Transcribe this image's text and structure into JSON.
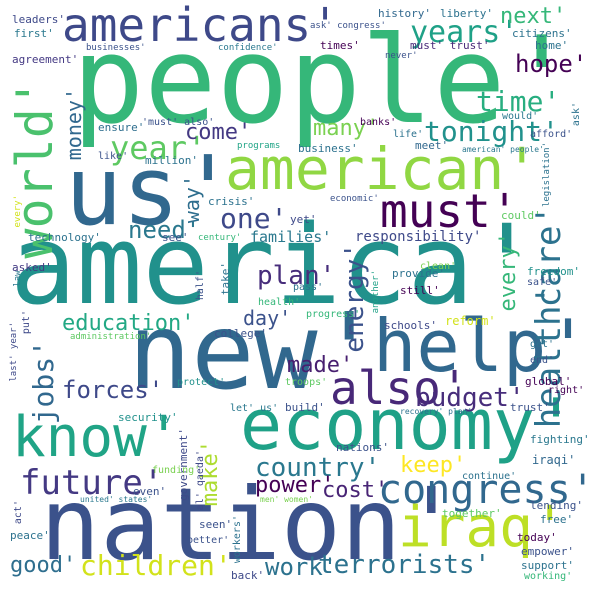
{
  "words": [
    {
      "text": "people'",
      "color": "#35b779"
    },
    {
      "text": "america'",
      "color": "#21918c"
    },
    {
      "text": "us'",
      "color": "#31688e"
    },
    {
      "text": "new'",
      "color": "#31688e"
    },
    {
      "text": "nation'",
      "color": "#3b528b"
    },
    {
      "text": "economy'",
      "color": "#1fa187"
    },
    {
      "text": "american'",
      "color": "#90d743"
    },
    {
      "text": "americans'",
      "color": "#3e4989"
    },
    {
      "text": "help'",
      "color": "#31688e"
    },
    {
      "text": "know'",
      "color": "#20a486"
    },
    {
      "text": "iraq'",
      "color": "#bddf26"
    },
    {
      "text": "also'",
      "color": "#482878"
    },
    {
      "text": "must'",
      "color": "#440154"
    },
    {
      "text": "world'",
      "color": "#4ac16d"
    },
    {
      "text": "congress'",
      "color": "#31688e"
    },
    {
      "text": "future'",
      "color": "#443983"
    },
    {
      "text": "terrorists'",
      "color": "#2c728e"
    },
    {
      "text": "children'",
      "color": "#d2e21b"
    },
    {
      "text": "health'",
      "color": "#2c728e"
    },
    {
      "text": "care'",
      "color": "#2c728e"
    },
    {
      "text": "tonight'",
      "color": "#21918c"
    },
    {
      "text": "time'",
      "color": "#28ae80"
    },
    {
      "text": "year'",
      "color": "#5ec962"
    },
    {
      "text": "years'",
      "color": "#1fa187"
    },
    {
      "text": "one'",
      "color": "#3e4989"
    },
    {
      "text": "education'",
      "color": "#22a884"
    },
    {
      "text": "energy'",
      "color": "#3b528b"
    },
    {
      "text": "plan'",
      "color": "#472d7b"
    },
    {
      "text": "budget'",
      "color": "#472d7b"
    },
    {
      "text": "country'",
      "color": "#2a788e"
    },
    {
      "text": "work'",
      "color": "#2c728e"
    },
    {
      "text": "good'",
      "color": "#2e6e8e"
    },
    {
      "text": "hope'",
      "color": "#440154"
    },
    {
      "text": "next'",
      "color": "#35b779"
    },
    {
      "text": "jobs'",
      "color": "#31688e"
    },
    {
      "text": "forces'",
      "color": "#3e4989"
    },
    {
      "text": "cost'",
      "color": "#482475"
    },
    {
      "text": "power'",
      "color": "#440154"
    },
    {
      "text": "keep'",
      "color": "#fde725"
    },
    {
      "text": "many'",
      "color": "#7ad151"
    },
    {
      "text": "come'",
      "color": "#443983"
    },
    {
      "text": "need'",
      "color": "#2a788e"
    },
    {
      "text": "made'",
      "color": "#481f70"
    },
    {
      "text": "day'",
      "color": "#3b528b"
    },
    {
      "text": "every'",
      "color": "#35b779"
    },
    {
      "text": "money'",
      "color": "#31688e"
    },
    {
      "text": "way'",
      "color": "#2e6e8e"
    },
    {
      "text": "make'",
      "color": "#addc30"
    },
    {
      "text": "responsibility'",
      "color": "#3e4989"
    },
    {
      "text": "families'",
      "color": "#2a788e"
    },
    {
      "text": "history'",
      "color": "#31688e"
    },
    {
      "text": "liberty'",
      "color": "#2c728e"
    },
    {
      "text": "citizens'",
      "color": "#2c728e"
    },
    {
      "text": "ask' congress'",
      "color": "#3b528b"
    },
    {
      "text": "leaders'",
      "color": "#3e4989"
    },
    {
      "text": "first'",
      "color": "#2a788e"
    },
    {
      "text": "agreement'",
      "color": "#443983"
    },
    {
      "text": "businesses'",
      "color": "#3b528b"
    },
    {
      "text": "confidence'",
      "color": "#2a788e"
    },
    {
      "text": "times'",
      "color": "#440154"
    },
    {
      "text": "must' trust'",
      "color": "#482878"
    },
    {
      "text": "never'",
      "color": "#3b528b"
    },
    {
      "text": "home'",
      "color": "#2c728e"
    },
    {
      "text": "would'",
      "color": "#2a788e"
    },
    {
      "text": "afford'",
      "color": "#3b528b"
    },
    {
      "text": "ask'",
      "color": "#2c728e"
    },
    {
      "text": "ensure'",
      "color": "#2e6e8e"
    },
    {
      "text": "'must' also'",
      "color": "#3b528b"
    },
    {
      "text": "banks'",
      "color": "#440154"
    },
    {
      "text": "life'",
      "color": "#2c728e"
    },
    {
      "text": "million'",
      "color": "#2c728e"
    },
    {
      "text": "like'",
      "color": "#3b528b"
    },
    {
      "text": "programs",
      "color": "#20a486"
    },
    {
      "text": "business'",
      "color": "#2c728e"
    },
    {
      "text": "meet'",
      "color": "#31688e"
    },
    {
      "text": "american' people'",
      "color": "#2a788e"
    },
    {
      "text": "legislation'",
      "color": "#2c728e"
    },
    {
      "text": "crisis'",
      "color": "#2c728e"
    },
    {
      "text": "economic'",
      "color": "#3b528b"
    },
    {
      "text": "could'",
      "color": "#5ec962"
    },
    {
      "text": "yet'",
      "color": "#3e4989"
    },
    {
      "text": "technology'",
      "color": "#2c728e"
    },
    {
      "text": "see'",
      "color": "#3b528b"
    },
    {
      "text": "century'",
      "color": "#35b779"
    },
    {
      "text": "take'",
      "color": "#2c728e"
    },
    {
      "text": "provide'",
      "color": "#2c728e"
    },
    {
      "text": "clean'",
      "color": "#7ad151"
    },
    {
      "text": "freedom'",
      "color": "#21918c"
    },
    {
      "text": "safe'",
      "color": "#3b528b"
    },
    {
      "text": "law'",
      "color": "#2a788e"
    },
    {
      "text": "asked'",
      "color": "#443983"
    },
    {
      "text": "half'",
      "color": "#3b528b"
    },
    {
      "text": "every'",
      "color": "#d2e21b"
    },
    {
      "text": "health'",
      "color": "#35b779"
    },
    {
      "text": "pass'",
      "color": "#2c728e"
    },
    {
      "text": "another'",
      "color": "#1fa187"
    },
    {
      "text": "still'",
      "color": "#440154"
    },
    {
      "text": "progress'",
      "color": "#35b779"
    },
    {
      "text": "reform'",
      "color": "#d2e21b"
    },
    {
      "text": "put'",
      "color": "#3e4989"
    },
    {
      "text": "college'",
      "color": "#3b528b"
    },
    {
      "text": "administration'",
      "color": "#5ec962"
    },
    {
      "text": "schools'",
      "color": "#3e4989"
    },
    {
      "text": "get'",
      "color": "#2c728e"
    },
    {
      "text": "end'",
      "color": "#3b528b"
    },
    {
      "text": "last' year'",
      "color": "#3e4989"
    },
    {
      "text": "global'",
      "color": "#440154"
    },
    {
      "text": "right'",
      "color": "#440154"
    },
    {
      "text": "protect'",
      "color": "#21918c"
    },
    {
      "text": "troops'",
      "color": "#5ec962"
    },
    {
      "text": "recovery' plan'",
      "color": "#2c728e"
    },
    {
      "text": "trust'",
      "color": "#3b528b"
    },
    {
      "text": "security'",
      "color": "#21918c"
    },
    {
      "text": "let' us'",
      "color": "#2a788e"
    },
    {
      "text": "build'",
      "color": "#3b528b"
    },
    {
      "text": "fighting'",
      "color": "#2a788e"
    },
    {
      "text": "government'",
      "color": "#3e4989"
    },
    {
      "text": "al' qaeda'",
      "color": "#3e4989"
    },
    {
      "text": "funding'",
      "color": "#7ad151"
    },
    {
      "text": "nations'",
      "color": "#3b528b"
    },
    {
      "text": "iraqi'",
      "color": "#31688e"
    },
    {
      "text": "continue'",
      "color": "#2c728e"
    },
    {
      "text": "even'",
      "color": "#3b528b"
    },
    {
      "text": "united' states'",
      "color": "#2a788e"
    },
    {
      "text": "men' women'",
      "color": "#7ad151"
    },
    {
      "text": "lending'",
      "color": "#3b528b"
    },
    {
      "text": "free'",
      "color": "#2c728e"
    },
    {
      "text": "act'",
      "color": "#3e4989"
    },
    {
      "text": "seen'",
      "color": "#3b528b"
    },
    {
      "text": "together'",
      "color": "#5ec962"
    },
    {
      "text": "workers'",
      "color": "#2c728e"
    },
    {
      "text": "today'",
      "color": "#440154"
    },
    {
      "text": "peace'",
      "color": "#2c728e"
    },
    {
      "text": "better'",
      "color": "#3b528b"
    },
    {
      "text": "empower'",
      "color": "#3b528b"
    },
    {
      "text": "support'",
      "color": "#2c728e"
    },
    {
      "text": "working'",
      "color": "#35b779"
    },
    {
      "text": "back'",
      "color": "#3e4989"
    }
  ]
}
